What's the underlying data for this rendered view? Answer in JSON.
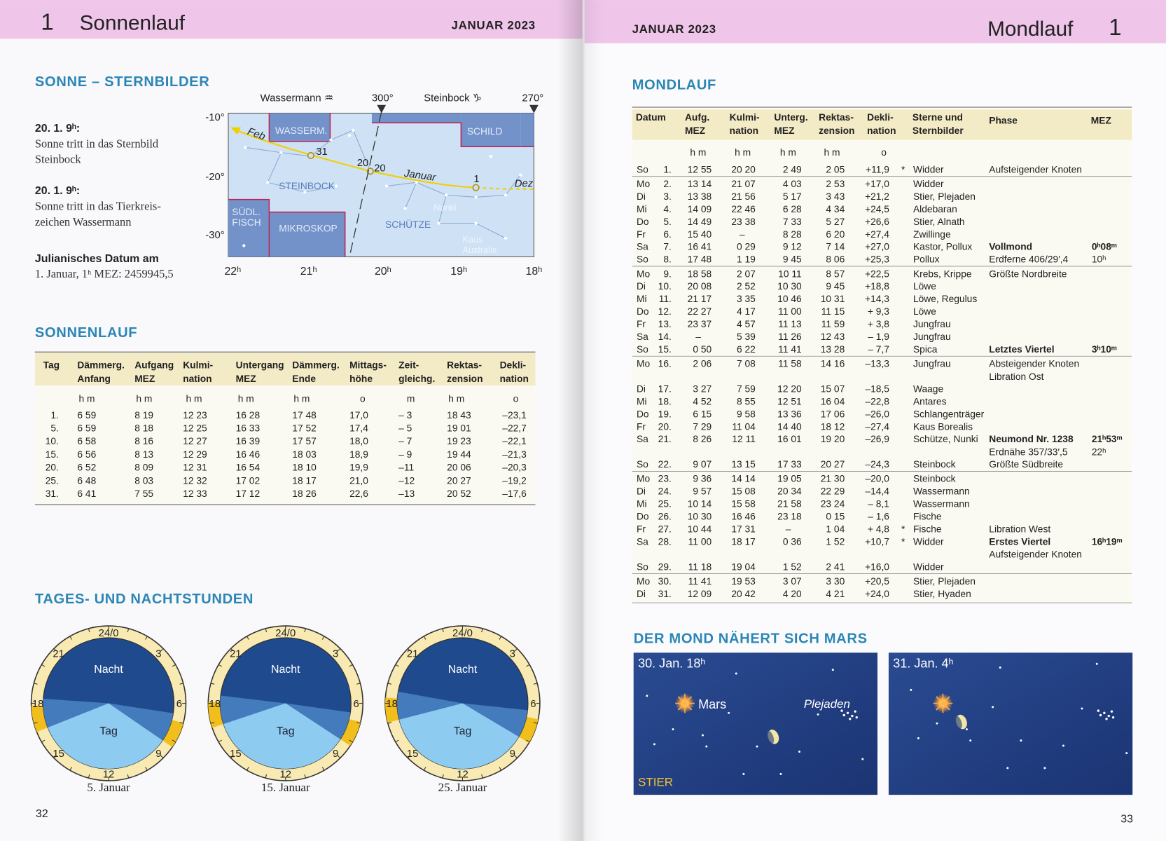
{
  "left_page": {
    "chapter": "1",
    "title": "Sonnenlauf",
    "month": "JANUAR 2023",
    "page_number": "32",
    "constellations_section": {
      "heading": "SONNE – STERNBILDER",
      "notes": [
        {
          "heading": "20. 1.  9ʰ:",
          "lines": [
            "Sonne tritt in das Sternbild",
            "Steinbock"
          ]
        },
        {
          "heading": "20. 1.  9ʰ:",
          "lines": [
            "Sonne tritt in das Tierkreis-",
            "zeichen Wassermann"
          ]
        },
        {
          "heading": "Julianisches Datum am",
          "lines": [
            "1. Januar, 1ʰ MEZ: 2459945,5"
          ]
        }
      ],
      "star_map": {
        "top_labels": [
          "Wassermann ♒",
          "300°",
          "Steinbock ♑",
          "270°"
        ],
        "dec_labels": [
          "-10°",
          "-20°",
          "-30°"
        ],
        "ra_labels": [
          "22ʰ",
          "21ʰ",
          "20ʰ",
          "19ʰ",
          "18ʰ"
        ],
        "constellations": [
          [
            "WASSERM."
          ],
          [
            "SCHILD"
          ],
          [
            "STEINBOCK"
          ],
          [
            "SÜDL.",
            "FISCH"
          ],
          [
            "MIKROSKOP"
          ],
          [
            "SCHÜTZE"
          ]
        ],
        "stars": [
          [
            "Nunki"
          ],
          [
            "Kaus",
            "Australis"
          ]
        ],
        "path_labels": [
          "Feb",
          "Januar",
          "Dez"
        ],
        "point_labels": [
          "31",
          "20",
          "20",
          "1"
        ]
      }
    },
    "sun_table": {
      "heading": "SONNENLAUF",
      "columns": [
        {
          "label": [
            "Tag"
          ]
        },
        {
          "label": [
            "Dämmerg.",
            "Anfang"
          ],
          "unit": "h m"
        },
        {
          "label": [
            "Aufgang",
            "MEZ"
          ],
          "unit": "h m"
        },
        {
          "label": [
            "Kulmi-",
            "nation"
          ],
          "unit": "h m"
        },
        {
          "label": [
            "Untergang",
            "MEZ"
          ],
          "unit": "h m"
        },
        {
          "label": [
            "Dämmerg.",
            "Ende"
          ],
          "unit": "h m"
        },
        {
          "label": [
            "Mittags-",
            "höhe"
          ],
          "unit": "o"
        },
        {
          "label": [
            "Zeit-",
            "gleichg."
          ],
          "unit": "m"
        },
        {
          "label": [
            "Rektas-",
            "zension"
          ],
          "unit": "h m"
        },
        {
          "label": [
            "Dekli-",
            "nation"
          ],
          "unit": "o"
        }
      ],
      "rows": [
        [
          "1.",
          "6 59",
          "8 19",
          "12 23",
          "16 28",
          "17 48",
          "17,0",
          "– 3",
          "18 43",
          "–23,1"
        ],
        [
          "5.",
          "6 59",
          "8 18",
          "12 25",
          "16 33",
          "17 52",
          "17,4",
          "– 5",
          "19 01",
          "–22,7"
        ],
        [
          "10.",
          "6 58",
          "8 16",
          "12 27",
          "16 39",
          "17 57",
          "18,0",
          "– 7",
          "19 23",
          "–22,1"
        ],
        [
          "15.",
          "6 56",
          "8 13",
          "12 29",
          "16 46",
          "18 03",
          "18,9",
          "– 9",
          "19 44",
          "–21,3"
        ],
        [
          "20.",
          "6 52",
          "8 09",
          "12 31",
          "16 54",
          "18 10",
          "19,9",
          "–11",
          "20 06",
          "–20,3"
        ],
        [
          "25.",
          "6 48",
          "8 03",
          "12 32",
          "17 02",
          "18 17",
          "21,0",
          "–12",
          "20 27",
          "–19,2"
        ],
        [
          "31.",
          "6 41",
          "7 55",
          "12 33",
          "17 12",
          "18 26",
          "22,6",
          "–13",
          "20 52",
          "–17,6"
        ]
      ]
    },
    "day_night": {
      "heading": "TAGES- UND NACHTSTUNDEN",
      "dial_labels": [
        "24/0",
        "3",
        "6",
        "9",
        "12",
        "15",
        "18",
        "21"
      ],
      "night": "Nacht",
      "day": "Tag",
      "captions": [
        "5. Januar",
        "15. Januar",
        "25. Januar"
      ]
    }
  },
  "right_page": {
    "month": "JANUAR 2023",
    "title": "Mondlauf",
    "chapter": "1",
    "page_number": "33",
    "moon_table": {
      "heading": "MONDLAUF",
      "columns": [
        {
          "label": [
            "Datum"
          ]
        },
        {
          "label": [
            "Aufg.",
            "MEZ"
          ],
          "unit": "h m"
        },
        {
          "label": [
            "Kulmi-",
            "nation"
          ],
          "unit": "h m"
        },
        {
          "label": [
            "Unterg.",
            "MEZ"
          ],
          "unit": "h m"
        },
        {
          "label": [
            "Rektas-",
            "zension"
          ],
          "unit": "h m"
        },
        {
          "label": [
            "Dekli-",
            "nation"
          ],
          "unit": "o"
        },
        {
          "label": [
            "Sterne und",
            "Sternbilder"
          ]
        },
        {
          "label": [
            "Phase"
          ]
        },
        {
          "label": [
            "MEZ"
          ]
        }
      ],
      "rows": [
        {
          "day": "So",
          "date": "1.",
          "rise": "12 55",
          "culm": "20 20",
          "set": "2 49",
          "ra": "2 05",
          "dec": "+11,9",
          "mark": "*",
          "stars": "Widder",
          "phase": [
            "Aufsteigender Knoten"
          ]
        },
        {
          "day": "Mo",
          "date": "2.",
          "rise": "13 14",
          "culm": "21 07",
          "set": "4 03",
          "ra": "2 53",
          "dec": "+17,0",
          "stars": "Widder"
        },
        {
          "day": "Di",
          "date": "3.",
          "rise": "13 38",
          "culm": "21 56",
          "set": "5 17",
          "ra": "3 43",
          "dec": "+21,2",
          "stars": "Stier, Plejaden"
        },
        {
          "day": "Mi",
          "date": "4.",
          "rise": "14 09",
          "culm": "22 46",
          "set": "6 28",
          "ra": "4 34",
          "dec": "+24,5",
          "stars": "Aldebaran"
        },
        {
          "day": "Do",
          "date": "5.",
          "rise": "14 49",
          "culm": "23 38",
          "set": "7 33",
          "ra": "5 27",
          "dec": "+26,6",
          "stars": "Stier, Alnath"
        },
        {
          "day": "Fr",
          "date": "6.",
          "rise": "15 40",
          "culm": "–",
          "set": "8 28",
          "ra": "6 20",
          "dec": "+27,4",
          "stars": "Zwillinge"
        },
        {
          "day": "Sa",
          "date": "7.",
          "rise": "16 41",
          "culm": "0 29",
          "set": "9 12",
          "ra": "7 14",
          "dec": "+27,0",
          "stars": "Kastor, Pollux",
          "phase": [
            "Vollmond"
          ],
          "mez": [
            "0ʰ08ᵐ"
          ],
          "bold": true
        },
        {
          "day": "So",
          "date": "8.",
          "rise": "17 48",
          "culm": "1 19",
          "set": "9 45",
          "ra": "8 06",
          "dec": "+25,3",
          "stars": "Pollux",
          "phase": [
            "Erdferne 406/29′,4"
          ],
          "mez": [
            "10ʰ"
          ]
        },
        {
          "day": "Mo",
          "date": "9.",
          "rise": "18 58",
          "culm": "2 07",
          "set": "10 11",
          "ra": "8 57",
          "dec": "+22,5",
          "stars": "Krebs, Krippe",
          "phase": [
            "Größte Nordbreite"
          ]
        },
        {
          "day": "Di",
          "date": "10.",
          "rise": "20 08",
          "culm": "2 52",
          "set": "10 30",
          "ra": "9 45",
          "dec": "+18,8",
          "stars": "Löwe"
        },
        {
          "day": "Mi",
          "date": "11.",
          "rise": "21 17",
          "culm": "3 35",
          "set": "10 46",
          "ra": "10 31",
          "dec": "+14,3",
          "stars": "Löwe, Regulus"
        },
        {
          "day": "Do",
          "date": "12.",
          "rise": "22 27",
          "culm": "4 17",
          "set": "11 00",
          "ra": "11 15",
          "dec": "+ 9,3",
          "stars": "Löwe"
        },
        {
          "day": "Fr",
          "date": "13.",
          "rise": "23 37",
          "culm": "4 57",
          "set": "11 13",
          "ra": "11 59",
          "dec": "+ 3,8",
          "stars": "Jungfrau"
        },
        {
          "day": "Sa",
          "date": "14.",
          "rise": "–",
          "culm": "5 39",
          "set": "11 26",
          "ra": "12 43",
          "dec": "– 1,9",
          "stars": "Jungfrau"
        },
        {
          "day": "So",
          "date": "15.",
          "rise": "0 50",
          "culm": "6 22",
          "set": "11 41",
          "ra": "13 28",
          "dec": "– 7,7",
          "stars": "Spica",
          "phase": [
            "Letztes Viertel"
          ],
          "mez": [
            "3ʰ10ᵐ"
          ],
          "bold": true
        },
        {
          "day": "Mo",
          "date": "16.",
          "rise": "2 06",
          "culm": "7 08",
          "set": "11 58",
          "ra": "14 16",
          "dec": "–13,3",
          "stars": "Jungfrau",
          "phase": [
            "Absteigender Knoten",
            "Libration Ost"
          ]
        },
        {
          "day": "Di",
          "date": "17.",
          "rise": "3 27",
          "culm": "7 59",
          "set": "12 20",
          "ra": "15 07",
          "dec": "–18,5",
          "stars": "Waage"
        },
        {
          "day": "Mi",
          "date": "18.",
          "rise": "4 52",
          "culm": "8 55",
          "set": "12 51",
          "ra": "16 04",
          "dec": "–22,8",
          "stars": "Antares"
        },
        {
          "day": "Do",
          "date": "19.",
          "rise": "6 15",
          "culm": "9 58",
          "set": "13 36",
          "ra": "17 06",
          "dec": "–26,0",
          "stars": "Schlangenträger"
        },
        {
          "day": "Fr",
          "date": "20.",
          "rise": "7 29",
          "culm": "11 04",
          "set": "14 40",
          "ra": "18 12",
          "dec": "–27,4",
          "stars": "Kaus Borealis"
        },
        {
          "day": "Sa",
          "date": "21.",
          "rise": "8 26",
          "culm": "12 11",
          "set": "16 01",
          "ra": "19 20",
          "dec": "–26,9",
          "stars": "Schütze, Nunki",
          "phase": [
            "Neumond Nr. 1238",
            "Erdnähe 357/33′,5"
          ],
          "mez": [
            "21ʰ53ᵐ",
            "22ʰ"
          ],
          "bold": true
        },
        {
          "day": "So",
          "date": "22.",
          "rise": "9 07",
          "culm": "13 15",
          "set": "17 33",
          "ra": "20 27",
          "dec": "–24,3",
          "stars": "Steinbock",
          "phase": [
            "Größte Südbreite"
          ]
        },
        {
          "day": "Mo",
          "date": "23.",
          "rise": "9 36",
          "culm": "14 14",
          "set": "19 05",
          "ra": "21 30",
          "dec": "–20,0",
          "stars": "Steinbock"
        },
        {
          "day": "Di",
          "date": "24.",
          "rise": "9 57",
          "culm": "15 08",
          "set": "20 34",
          "ra": "22 29",
          "dec": "–14,4",
          "stars": "Wassermann"
        },
        {
          "day": "Mi",
          "date": "25.",
          "rise": "10 14",
          "culm": "15 58",
          "set": "21 58",
          "ra": "23 24",
          "dec": "– 8,1",
          "stars": "Wassermann"
        },
        {
          "day": "Do",
          "date": "26.",
          "rise": "10 30",
          "culm": "16 46",
          "set": "23 18",
          "ra": "0 15",
          "dec": "– 1,6",
          "stars": "Fische"
        },
        {
          "day": "Fr",
          "date": "27.",
          "rise": "10 44",
          "culm": "17 31",
          "set": "–",
          "ra": "1 04",
          "dec": "+ 4,8",
          "mark": "*",
          "stars": "Fische",
          "phase": [
            "Libration West"
          ]
        },
        {
          "day": "Sa",
          "date": "28.",
          "rise": "11 00",
          "culm": "18 17",
          "set": "0 36",
          "ra": "1 52",
          "dec": "+10,7",
          "mark": "*",
          "stars": "Widder",
          "phase": [
            "Erstes Viertel",
            "Aufsteigender Knoten"
          ],
          "mez": [
            "16ʰ19ᵐ"
          ],
          "bold": true
        },
        {
          "day": "So",
          "date": "29.",
          "rise": "11 18",
          "culm": "19 04",
          "set": "1 52",
          "ra": "2 41",
          "dec": "+16,0",
          "stars": "Widder"
        },
        {
          "day": "Mo",
          "date": "30.",
          "rise": "11 41",
          "culm": "19 53",
          "set": "3 07",
          "ra": "3 30",
          "dec": "+20,5",
          "stars": "Stier, Plejaden"
        },
        {
          "day": "Di",
          "date": "31.",
          "rise": "12 09",
          "culm": "20 42",
          "set": "4 20",
          "ra": "4 21",
          "dec": "+24,0",
          "stars": "Stier, Hyaden"
        }
      ]
    },
    "moon_mars": {
      "heading": "DER MOND NÄHERT SICH MARS",
      "panels": [
        {
          "time": "30. Jan. 18ʰ",
          "labels": [
            "Mars",
            "Plejaden"
          ],
          "constellation": "STIER"
        },
        {
          "time": "31. Jan. 4ʰ"
        }
      ]
    }
  }
}
